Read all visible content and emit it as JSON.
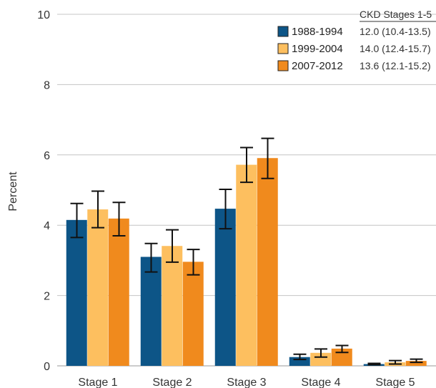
{
  "chart_data": {
    "type": "bar",
    "title": "",
    "xlabel": "",
    "ylabel": "Percent",
    "ylim": [
      0,
      10
    ],
    "yticks": [
      "0",
      "2",
      "4",
      "6",
      "8",
      "10"
    ],
    "grid": true,
    "legend_position": "top-right",
    "legend_title": "CKD Stages 1-5",
    "categories": [
      "Stage 1",
      "Stage 2",
      "Stage 3",
      "Stage 4",
      "Stage 5"
    ],
    "series": [
      {
        "name": "1988-1994",
        "color": "#0d5587",
        "summary": "12.0 (10.4-13.5)",
        "values": [
          4.15,
          3.1,
          4.47,
          0.25,
          0.05
        ],
        "error_low": [
          3.65,
          2.67,
          3.9,
          0.18,
          0.03
        ],
        "error_high": [
          4.62,
          3.48,
          5.02,
          0.33,
          0.07
        ]
      },
      {
        "name": "1999-2004",
        "color": "#fdbf5f",
        "summary": "14.0 (12.4-15.7)",
        "values": [
          4.45,
          3.41,
          5.72,
          0.37,
          0.1
        ],
        "error_low": [
          3.93,
          2.95,
          5.22,
          0.25,
          0.05
        ],
        "error_high": [
          4.97,
          3.87,
          6.21,
          0.48,
          0.15
        ]
      },
      {
        "name": "2007-2012",
        "color": "#f08a1d",
        "summary": "13.6 (12.1-15.2)",
        "values": [
          4.19,
          2.96,
          5.91,
          0.49,
          0.14
        ],
        "error_low": [
          3.7,
          2.59,
          5.33,
          0.38,
          0.1
        ],
        "error_high": [
          4.65,
          3.31,
          6.47,
          0.58,
          0.19
        ]
      }
    ]
  }
}
